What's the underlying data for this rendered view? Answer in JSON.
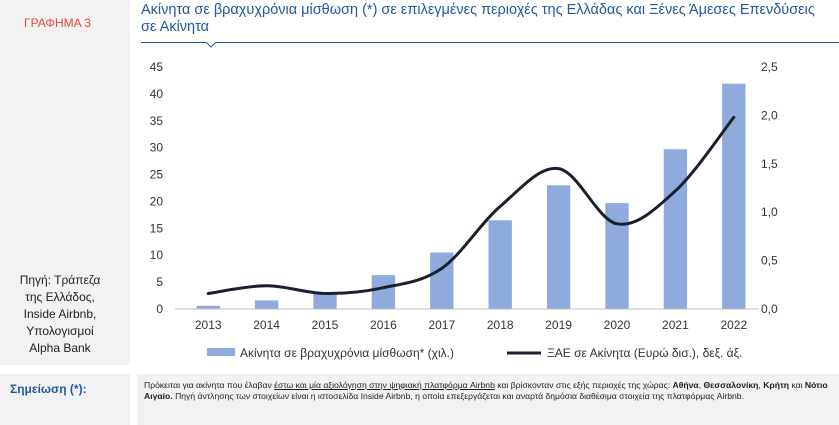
{
  "figure_label": "ΓΡΑΦΗΜΑ 3",
  "source": [
    "Πηγή: Τράπεζα",
    "της Ελλάδος,",
    "Inside Airbnb,",
    "Υπολογισμοί",
    "Alpha Bank"
  ],
  "note": {
    "label": "Σημείωση (*):",
    "part1": "Πρόκειται για ακίνητα που έλαβαν ",
    "part2_underlined": "έστω και μία αξιολόγηση στην ψηφιακή πλατφόρμα Airbnb",
    "part3": " και βρίσκονταν στις εξής περιοχές της χώρας: ",
    "athens": "Αθήνα",
    "sep1": ", ",
    "thessaloniki": "Θεσσαλονίκη",
    "sep2": ", ",
    "crete": "Κρήτη",
    "and": " και ",
    "aegean": "Νότιο Αιγαίο.",
    "part4": " Πηγή άντλησης των στοιχείων είναι η ιστοσελίδα Inside Airbnb, η οποία επεξεργάζεται και αναρτά δημόσια διαθέσιμα στοιχεία της πλατφόρμας Airbnb."
  },
  "chart_data": {
    "type": "bar+line",
    "title": "Ακίνητα σε βραχυχρόνια μίσθωση (*) σε επιλεγμένες περιοχές της Ελλάδας και Ξένες Άμεσες Επενδύσεις σε Ακίνητα",
    "categories": [
      "2013",
      "2014",
      "2015",
      "2016",
      "2017",
      "2018",
      "2019",
      "2020",
      "2021",
      "2022"
    ],
    "series": [
      {
        "name": "Ακίνητα σε βραχυχρόνια μίσθωση* (χιλ.)",
        "type": "bar",
        "axis": "left",
        "color": "#8faadc",
        "values": [
          0.6,
          1.6,
          2.9,
          6.3,
          10.5,
          16.5,
          23.0,
          19.7,
          29.7,
          41.9
        ]
      },
      {
        "name": "ΞΑΕ σε Ακίνητα (Ευρώ δισ.), δεξ. άξ.",
        "type": "line",
        "axis": "right",
        "color": "#1a2030",
        "values": [
          0.16,
          0.24,
          0.16,
          0.22,
          0.42,
          1.06,
          1.45,
          0.88,
          1.22,
          1.98
        ]
      }
    ],
    "yleft": {
      "min": 0,
      "max": 45,
      "step": 5,
      "ticks": [
        "0",
        "5",
        "10",
        "15",
        "20",
        "25",
        "30",
        "35",
        "40",
        "45"
      ]
    },
    "yright": {
      "min": 0,
      "max": 2.5,
      "step": 0.5,
      "ticks": [
        "0,0",
        "0,5",
        "1,0",
        "1,5",
        "2,0",
        "2,5"
      ]
    },
    "legend_position": "bottom",
    "grid": false
  }
}
